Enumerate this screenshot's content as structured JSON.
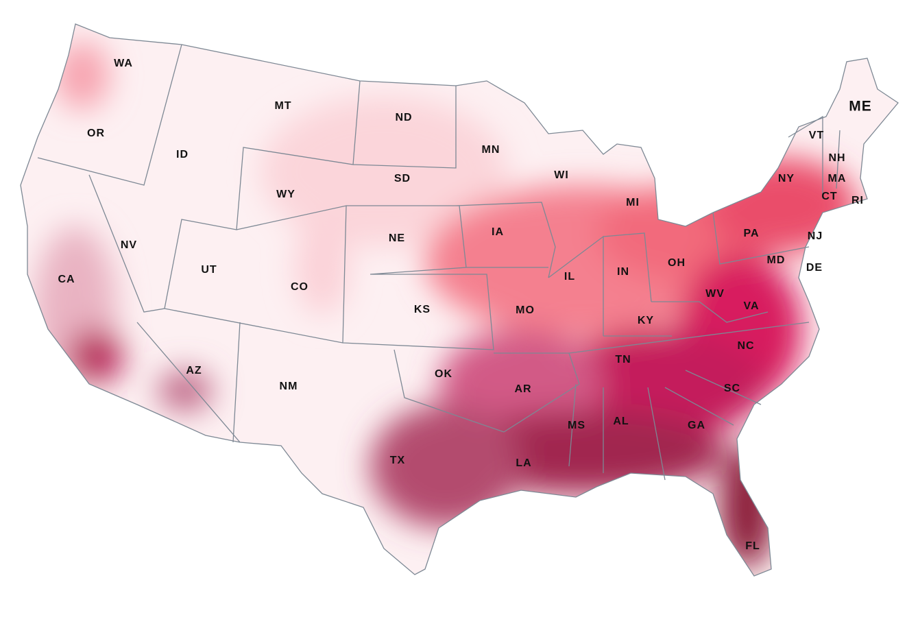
{
  "map": {
    "labels": [
      {
        "text": "WA"
      },
      {
        "text": "OR"
      },
      {
        "text": "CA"
      },
      {
        "text": "ID"
      },
      {
        "text": "NV"
      },
      {
        "text": "MT"
      },
      {
        "text": "WY"
      },
      {
        "text": "UT"
      },
      {
        "text": "AZ"
      },
      {
        "text": "CO"
      },
      {
        "text": "NM"
      },
      {
        "text": "ND"
      },
      {
        "text": "SD"
      },
      {
        "text": "NE"
      },
      {
        "text": "KS"
      },
      {
        "text": "OK"
      },
      {
        "text": "TX"
      },
      {
        "text": "MN"
      },
      {
        "text": "IA"
      },
      {
        "text": "MO"
      },
      {
        "text": "AR"
      },
      {
        "text": "LA"
      },
      {
        "text": "WI"
      },
      {
        "text": "IL"
      },
      {
        "text": "MS"
      },
      {
        "text": "MI"
      },
      {
        "text": "IN"
      },
      {
        "text": "KY"
      },
      {
        "text": "TN"
      },
      {
        "text": "AL"
      },
      {
        "text": "OH"
      },
      {
        "text": "WV"
      },
      {
        "text": "VA"
      },
      {
        "text": "NC"
      },
      {
        "text": "SC"
      },
      {
        "text": "GA"
      },
      {
        "text": "FL"
      },
      {
        "text": "PA"
      },
      {
        "text": "NY"
      },
      {
        "text": "VT"
      },
      {
        "text": "NH"
      },
      {
        "text": "MA"
      },
      {
        "text": "CT"
      },
      {
        "text": "RI"
      },
      {
        "text": "NJ"
      },
      {
        "text": "DE"
      },
      {
        "text": "MD"
      },
      {
        "text": "ME"
      }
    ]
  }
}
